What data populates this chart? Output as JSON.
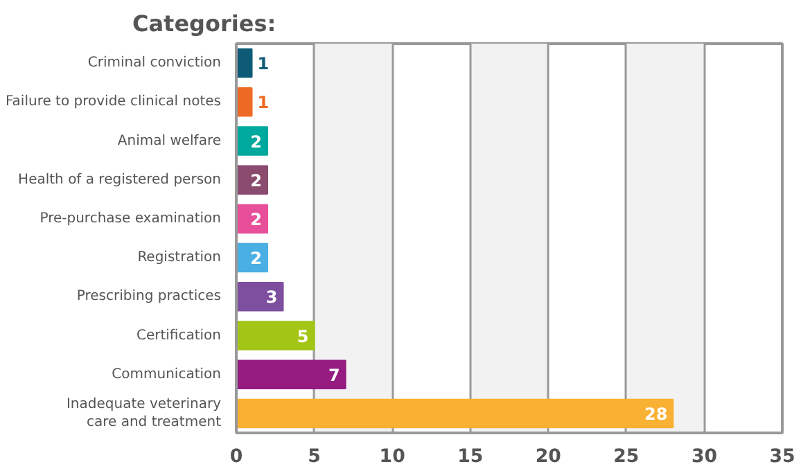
{
  "chart_data": {
    "type": "bar",
    "orientation": "horizontal",
    "title": "Categories:",
    "categories": [
      "Criminal conviction",
      "Failure to provide clinical notes",
      "Animal welfare",
      "Health of a registered person",
      "Pre-purchase examination",
      "Registration",
      "Prescribing practices",
      "Certification",
      "Communication",
      "Inadequate veterinary care and treatment"
    ],
    "values": [
      1,
      1,
      2,
      2,
      2,
      2,
      3,
      5,
      7,
      28
    ],
    "colors": [
      "#0e5b78",
      "#ee6a24",
      "#00a99d",
      "#8b4b6e",
      "#e84f9a",
      "#4aafe2",
      "#7e4f9f",
      "#a3c516",
      "#951b80",
      "#f8b133"
    ],
    "xlim": [
      0,
      35
    ],
    "xticks": [
      0,
      5,
      10,
      15,
      20,
      25,
      30,
      35
    ],
    "grid": "x",
    "data_labels": true
  }
}
